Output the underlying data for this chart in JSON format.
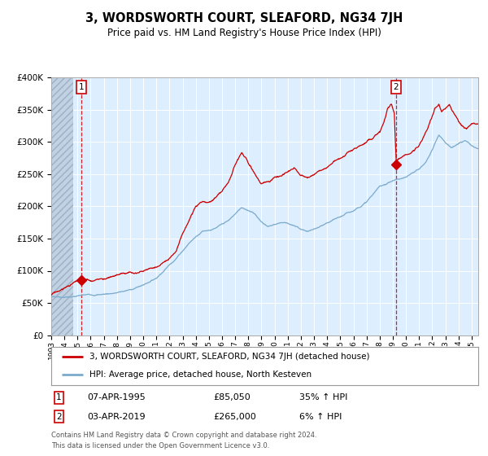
{
  "title": "3, WORDSWORTH COURT, SLEAFORD, NG34 7JH",
  "subtitle": "Price paid vs. HM Land Registry's House Price Index (HPI)",
  "legend_line1": "3, WORDSWORTH COURT, SLEAFORD, NG34 7JH (detached house)",
  "legend_line2": "HPI: Average price, detached house, North Kesteven",
  "footnote1": "Contains HM Land Registry data © Crown copyright and database right 2024.",
  "footnote2": "This data is licensed under the Open Government Licence v3.0.",
  "transaction1_label": "1",
  "transaction1_date": "07-APR-1995",
  "transaction1_price": "£85,050",
  "transaction1_hpi": "35% ↑ HPI",
  "transaction2_label": "2",
  "transaction2_date": "03-APR-2019",
  "transaction2_price": "£265,000",
  "transaction2_hpi": "6% ↑ HPI",
  "transaction1_x": 1995.27,
  "transaction1_y": 85050,
  "transaction2_x": 2019.25,
  "transaction2_y": 265000,
  "red_line_color": "#cc0000",
  "blue_line_color": "#7aaacc",
  "background_color": "#ddeeff",
  "grid_color": "#ffffff",
  "ylim": [
    0,
    400000
  ],
  "xlim_start": 1993.0,
  "xlim_end": 2025.5,
  "yticks": [
    0,
    50000,
    100000,
    150000,
    200000,
    250000,
    300000,
    350000,
    400000
  ],
  "xtick_years": [
    1993,
    1994,
    1995,
    1996,
    1997,
    1998,
    1999,
    2000,
    2001,
    2002,
    2003,
    2004,
    2005,
    2006,
    2007,
    2008,
    2009,
    2010,
    2011,
    2012,
    2013,
    2014,
    2015,
    2016,
    2017,
    2018,
    2019,
    2020,
    2021,
    2022,
    2023,
    2024,
    2025
  ]
}
